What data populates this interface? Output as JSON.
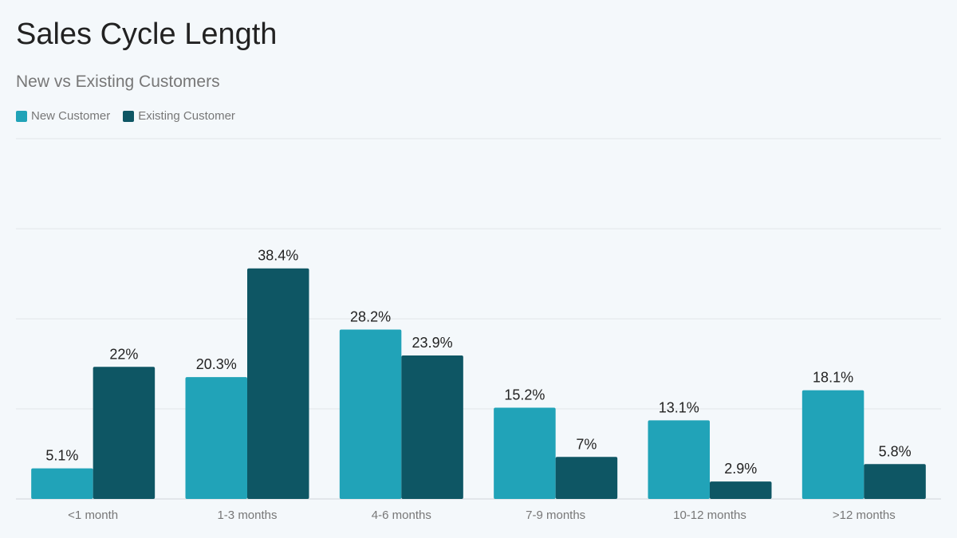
{
  "chart_data": {
    "type": "bar",
    "title": "Sales Cycle Length",
    "subtitle": "New vs Existing Customers",
    "categories": [
      "<1 month",
      "1-3 months",
      "4-6 months",
      "7-9 months",
      "10-12 months",
      ">12 months"
    ],
    "series": [
      {
        "name": "New Customer",
        "color": "#21a3b8",
        "values": [
          5.1,
          20.3,
          28.2,
          15.2,
          13.1,
          18.1
        ],
        "labels": [
          "5.1%",
          "20.3%",
          "28.2%",
          "15.2%",
          "13.1%",
          "18.1%"
        ]
      },
      {
        "name": "Existing Customer",
        "color": "#0e5664",
        "values": [
          22,
          38.4,
          23.9,
          7,
          2.9,
          5.8
        ],
        "labels": [
          "22%",
          "38.4%",
          "23.9%",
          "7%",
          "2.9%",
          "5.8%"
        ]
      }
    ],
    "ylim": [
      0,
      60
    ],
    "yticks": [
      0,
      15,
      30,
      45,
      60
    ],
    "grid": true,
    "legend": "top-left",
    "xlabel": "",
    "ylabel": ""
  }
}
